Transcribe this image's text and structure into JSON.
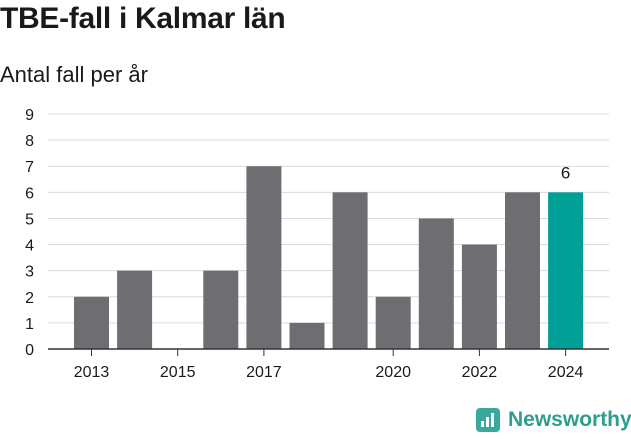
{
  "header": {
    "title": "TBE-fall i Kalmar län",
    "subtitle": "Antal fall per år"
  },
  "brand": {
    "name": "Newsworthy",
    "icon": "newsworthy-logo-icon"
  },
  "colors": {
    "bar": "#6e6d72",
    "highlight": "#00a096",
    "grid": "#d9d9d9",
    "axis": "#333333"
  },
  "chart_data": {
    "type": "bar",
    "title": "TBE-fall i Kalmar län",
    "subtitle": "Antal fall per år",
    "categories": [
      "2013",
      "2014",
      "2015",
      "2016",
      "2017",
      "2018",
      "2019",
      "2020",
      "2021",
      "2022",
      "2023",
      "2024"
    ],
    "values": [
      2,
      3,
      0,
      3,
      7,
      1,
      6,
      2,
      5,
      4,
      6,
      6
    ],
    "highlight_index": 11,
    "highlight_label": "6",
    "x_tick_labels": [
      "2013",
      "2015",
      "2017",
      "2020",
      "2022",
      "2024"
    ],
    "y_ticks": [
      0,
      1,
      2,
      3,
      4,
      5,
      6,
      7,
      8,
      9
    ],
    "ylim": [
      0,
      9
    ],
    "grid": true,
    "legend": "none"
  }
}
